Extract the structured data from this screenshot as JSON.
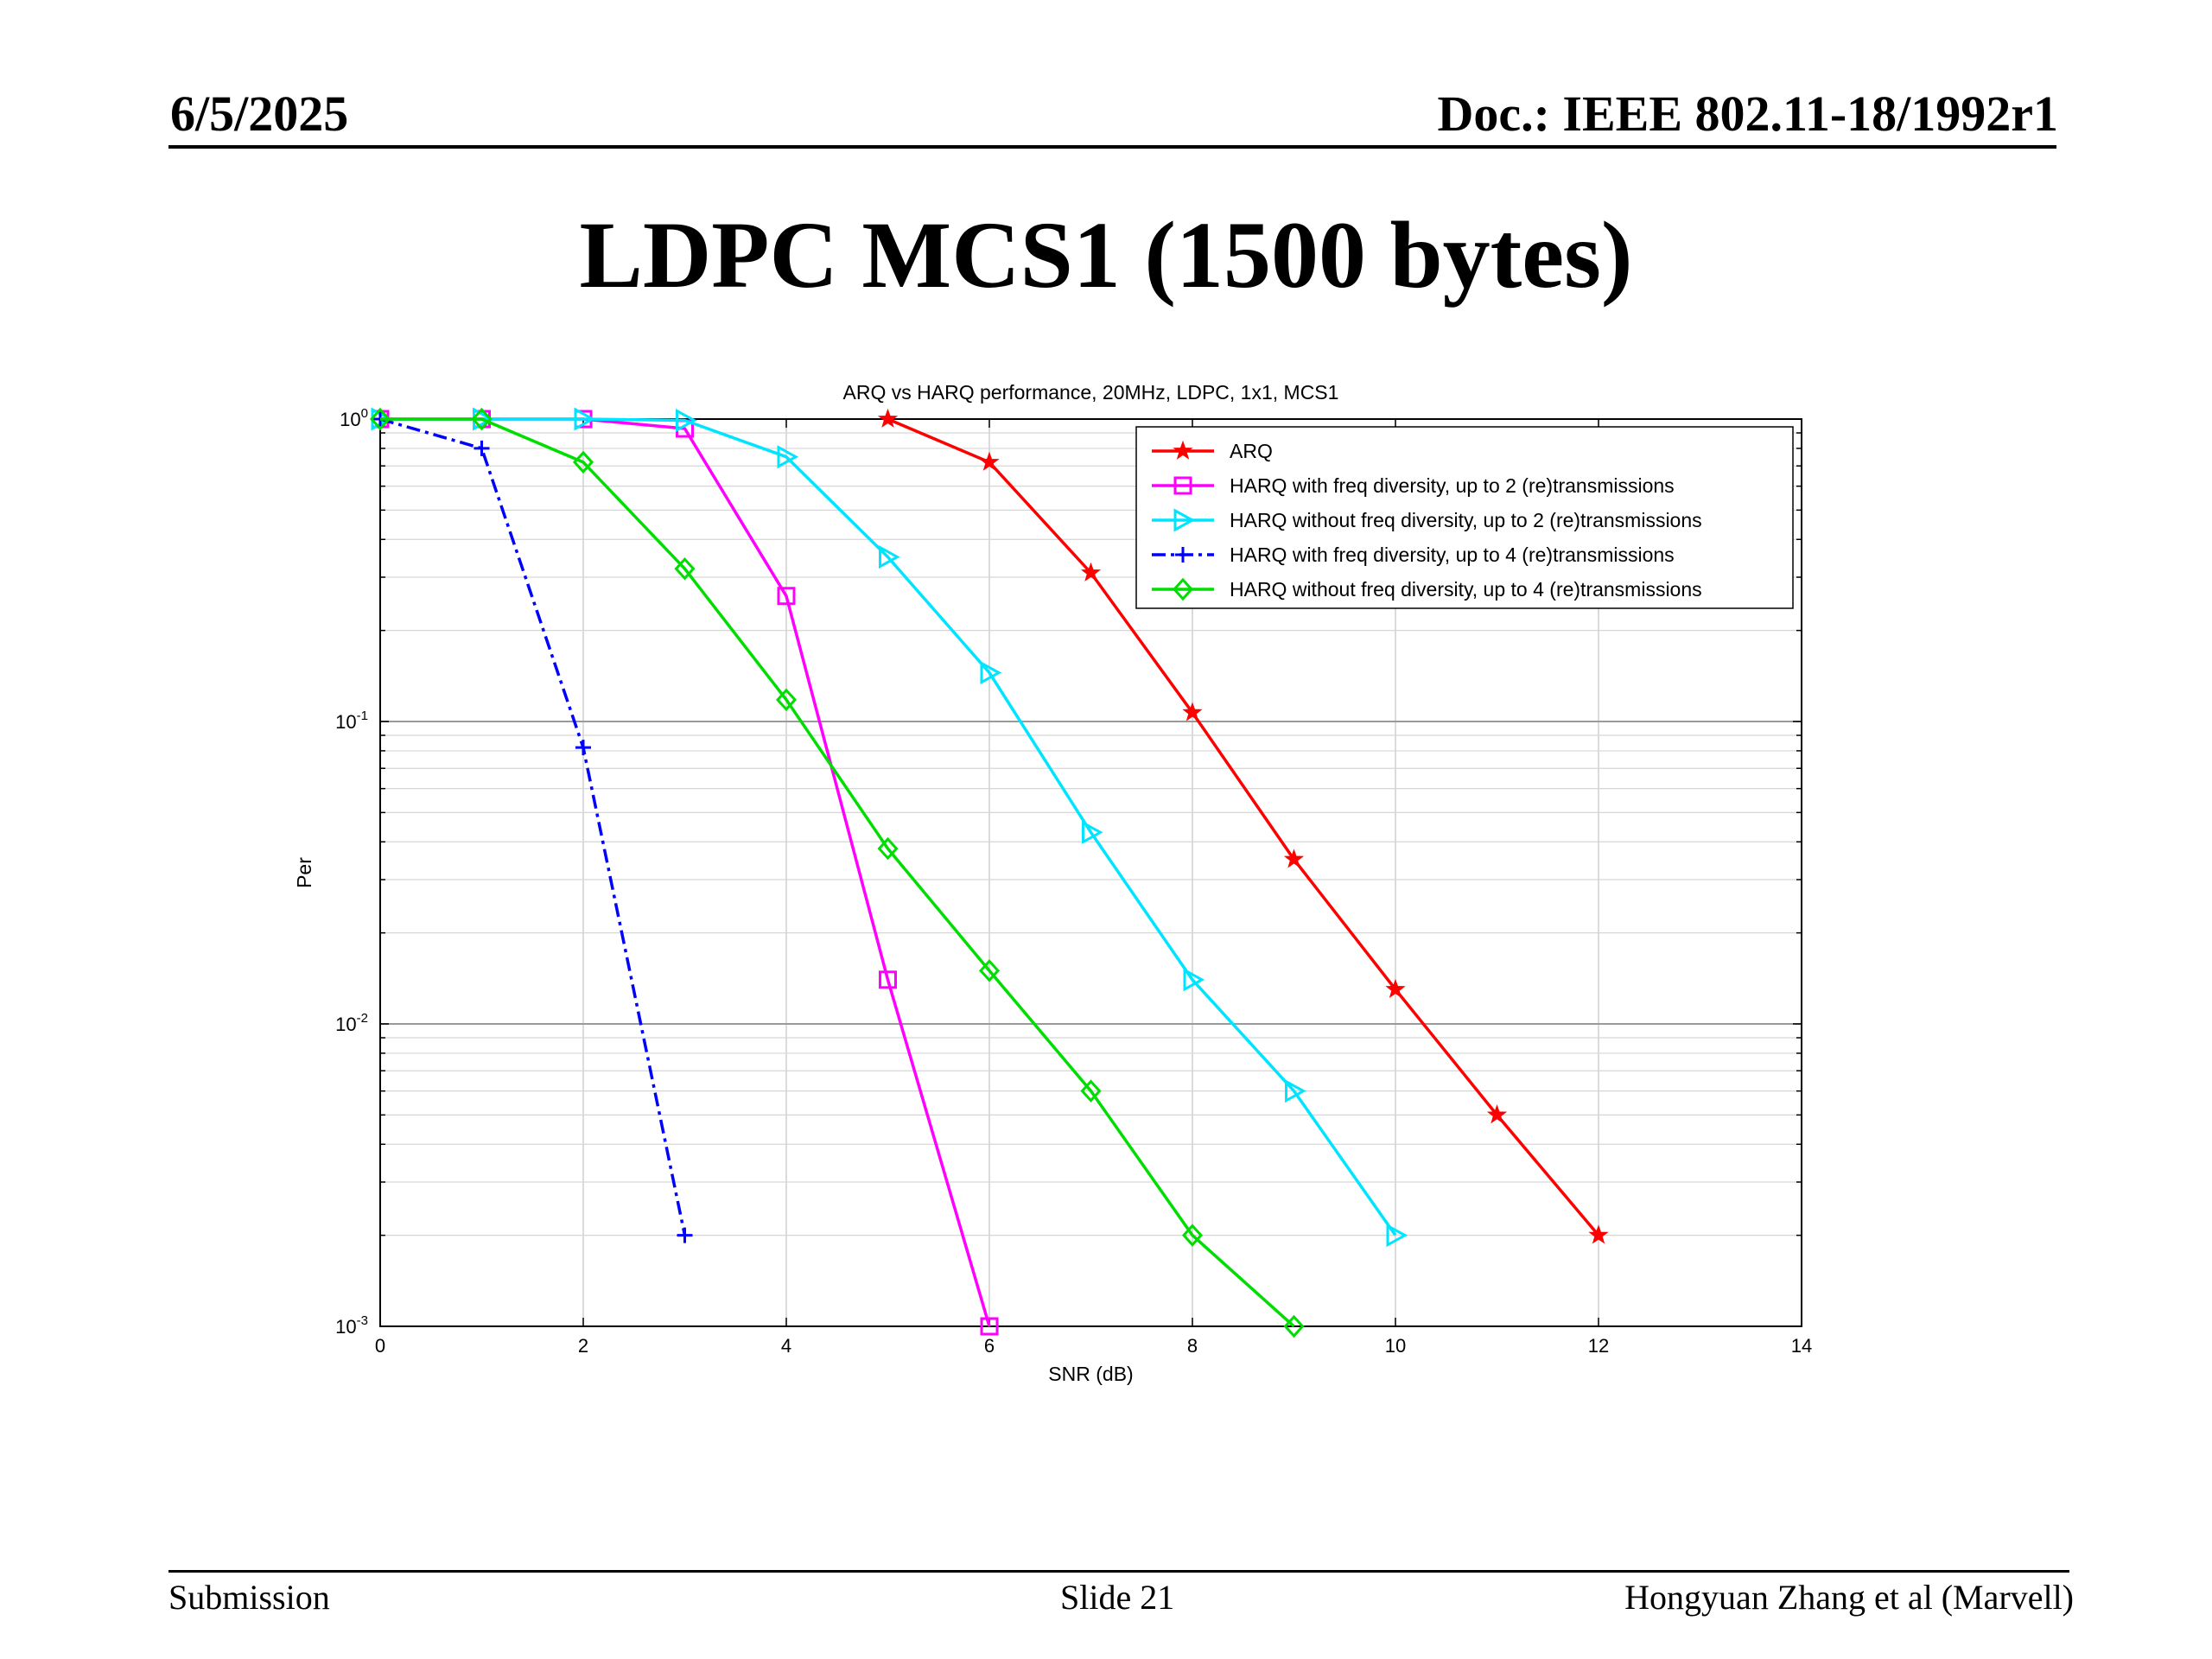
{
  "header": {
    "date": "6/5/2025",
    "doc": "Doc.: IEEE 802.11-18/1992r1"
  },
  "slide_title": "LDPC MCS1 (1500 bytes)",
  "footer": {
    "left": "Submission",
    "center": "Slide 21",
    "right": "Hongyuan Zhang et al (Marvell)"
  },
  "chart_data": {
    "type": "line",
    "title": "ARQ vs HARQ performance, 20MHz, LDPC, 1x1, MCS1",
    "xlabel": "SNR (dB)",
    "ylabel": "Per",
    "xlim": [
      0,
      14
    ],
    "ylim": [
      0.001,
      1
    ],
    "yscale": "log",
    "grid": true,
    "legend_position": "top-right",
    "x_ticks": [
      "0",
      "2",
      "4",
      "6",
      "8",
      "10",
      "12",
      "14"
    ],
    "y_ticks": [
      {
        "base": "10",
        "exp": "0",
        "value": 1
      },
      {
        "base": "10",
        "exp": "-1",
        "value": 0.1
      },
      {
        "base": "10",
        "exp": "-2",
        "value": 0.01
      },
      {
        "base": "10",
        "exp": "-3",
        "value": 0.001
      }
    ],
    "series": [
      {
        "name": "ARQ",
        "color": "#ff0000",
        "marker": "star",
        "dash": "solid",
        "x": [
          5,
          6,
          7,
          8,
          9,
          10,
          11,
          12
        ],
        "y": [
          1.0,
          0.72,
          0.31,
          0.107,
          0.035,
          0.013,
          0.005,
          0.002
        ]
      },
      {
        "name": "HARQ with freq diversity, up to 2 (re)transmissions",
        "color": "#ff00ff",
        "marker": "square",
        "dash": "solid",
        "x": [
          0,
          1,
          2,
          3,
          4,
          5,
          6
        ],
        "y": [
          1.0,
          1.0,
          1.0,
          0.93,
          0.26,
          0.014,
          0.001
        ]
      },
      {
        "name": "HARQ without freq diversity, up to 2 (re)transmissions",
        "color": "#00e5ff",
        "marker": "triangle-right",
        "dash": "solid",
        "x": [
          0,
          1,
          2,
          3,
          4,
          5,
          6,
          7,
          8,
          9,
          10
        ],
        "y": [
          1.0,
          1.0,
          1.0,
          0.99,
          0.75,
          0.35,
          0.145,
          0.043,
          0.014,
          0.006,
          0.002
        ]
      },
      {
        "name": "HARQ with freq diversity, up to 4 (re)transmissions",
        "color": "#0000ff",
        "marker": "plus",
        "dash": "dashdot",
        "x": [
          0,
          1,
          2,
          3
        ],
        "y": [
          1.0,
          0.8,
          0.082,
          0.002
        ]
      },
      {
        "name": "HARQ without freq diversity, up to 4 (re)transmissions",
        "color": "#00dd00",
        "marker": "diamond",
        "dash": "solid",
        "x": [
          0,
          1,
          2,
          3,
          4,
          5,
          6,
          7,
          8,
          9
        ],
        "y": [
          1.0,
          1.0,
          0.72,
          0.32,
          0.118,
          0.038,
          0.015,
          0.006,
          0.002,
          0.001
        ]
      }
    ]
  }
}
